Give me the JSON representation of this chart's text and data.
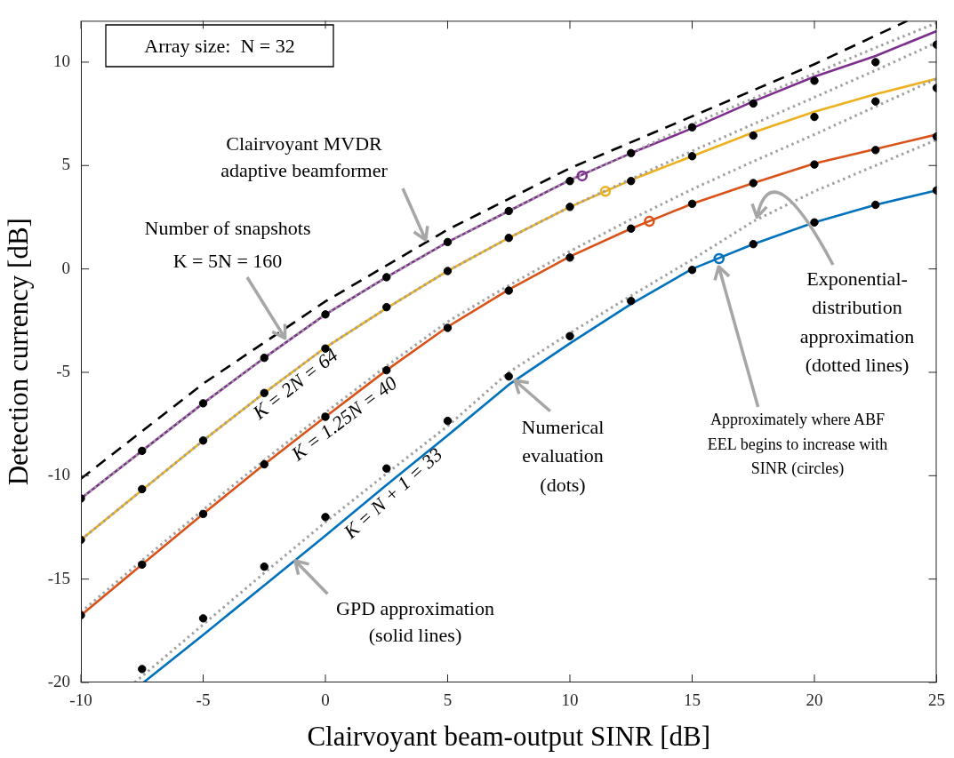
{
  "chart_data": {
    "type": "line",
    "xlabel": "Clairvoyant beam-output SINR [dB]",
    "ylabel": "Detection currency [dB]",
    "xlim": [
      -10,
      25
    ],
    "xticks": [
      -10,
      -5,
      0,
      5,
      10,
      15,
      20,
      25
    ],
    "ylim": [
      -20,
      12
    ],
    "yticks": [
      -20,
      -15,
      -10,
      -5,
      0,
      5,
      10
    ],
    "legend": false,
    "series": [
      {
        "color": "#000000",
        "line_style": "dashed",
        "marker": "none",
        "x": [
          -10,
          -5,
          0,
          5,
          10,
          15,
          20,
          23.8
        ],
        "values": [
          -10.15,
          -5.55,
          -1.57,
          1.9,
          4.87,
          7.38,
          9.9,
          12
        ]
      },
      {
        "color": "#7e2f8e",
        "line_style": "solid",
        "marker": "none",
        "x": [
          -10,
          -7.5,
          -5,
          -2.5,
          0,
          2.5,
          5,
          7.5,
          10,
          12.5,
          15,
          17.5,
          20,
          22.5,
          25
        ],
        "values": [
          -11.1,
          -8.8,
          -6.5,
          -4.3,
          -2.2,
          -0.4,
          1.3,
          2.8,
          4.3,
          5.6,
          6.8,
          8.1,
          9.3,
          10.3,
          11.5
        ]
      },
      {
        "color": "#edb120",
        "line_style": "solid",
        "marker": "none",
        "x": [
          -10,
          -7.5,
          -5,
          -2.5,
          0,
          2.5,
          5,
          7.5,
          10,
          12.5,
          15,
          17.5,
          20,
          22.5,
          25
        ],
        "values": [
          -13.1,
          -10.7,
          -8.3,
          -6.0,
          -3.8,
          -1.9,
          -0.1,
          1.5,
          3.0,
          4.3,
          5.45,
          6.6,
          7.6,
          8.45,
          9.2
        ]
      },
      {
        "color": "#d95319",
        "line_style": "solid",
        "marker": "none",
        "x": [
          -10,
          -7.5,
          -5,
          -2.5,
          0,
          2.5,
          5,
          7.5,
          10,
          12.5,
          15,
          17.5,
          20,
          22.5,
          25
        ],
        "values": [
          -16.75,
          -14.3,
          -11.85,
          -9.45,
          -7.15,
          -4.9,
          -2.8,
          -1.0,
          0.6,
          1.95,
          3.15,
          4.15,
          5.1,
          5.8,
          6.5
        ]
      },
      {
        "color": "#0072bd",
        "line_style": "solid",
        "marker": "none",
        "x": [
          -7.44,
          -5,
          -2.5,
          0,
          2.5,
          5,
          7.5,
          10,
          12.5,
          15,
          17.5,
          20,
          22.5,
          25
        ],
        "values": [
          -20,
          -17.7,
          -15.3,
          -12.9,
          -10.45,
          -8.05,
          -5.6,
          -3.6,
          -1.7,
          0.0,
          1.2,
          2.25,
          3.1,
          3.8
        ]
      },
      {
        "color": "#a0a0a0",
        "line_style": "dotted",
        "marker": "none",
        "x": [
          -10,
          -7.5,
          -5,
          -2.5,
          0,
          2.5,
          5,
          7.5,
          10,
          12.5,
          15,
          17.5,
          20,
          22.5,
          25
        ],
        "values": [
          -11.1,
          -8.8,
          -6.5,
          -4.3,
          -2.2,
          -0.4,
          1.3,
          2.8,
          4.3,
          5.6,
          7.0,
          8.25,
          9.45,
          10.7,
          11.9
        ]
      },
      {
        "color": "#a0a0a0",
        "line_style": "dotted",
        "marker": "none",
        "x": [
          -10,
          -7.5,
          -5,
          -2.5,
          0,
          2.5,
          5,
          7.5,
          10,
          12.5,
          15,
          17.5,
          20,
          22.5,
          25
        ],
        "values": [
          -13.1,
          -10.7,
          -8.3,
          -6.0,
          -3.8,
          -1.9,
          -0.1,
          1.5,
          3.0,
          4.35,
          5.7,
          7.0,
          8.3,
          9.6,
          10.95
        ]
      },
      {
        "color": "#a0a0a0",
        "line_style": "dotted",
        "marker": "none",
        "x": [
          -10,
          -7.5,
          -5,
          -2.5,
          0,
          2.5,
          5,
          7.5,
          10,
          12.5,
          15,
          17.5,
          20,
          22.5,
          25
        ],
        "values": [
          -16.6,
          -14.1,
          -11.65,
          -9.25,
          -6.95,
          -4.7,
          -2.55,
          -0.8,
          0.85,
          2.4,
          3.85,
          5.2,
          6.5,
          7.85,
          9.2
        ]
      },
      {
        "color": "#a0a0a0",
        "line_style": "dotted",
        "marker": "none",
        "x": [
          -7.8,
          -5,
          -2.5,
          0,
          2.5,
          5,
          7.5,
          10,
          12.5,
          15,
          17.5,
          20,
          22.5,
          25
        ],
        "values": [
          -20,
          -17.2,
          -14.7,
          -12.25,
          -9.9,
          -7.6,
          -5.0,
          -3.1,
          -1.3,
          0.45,
          2.3,
          3.75,
          5.0,
          6.25
        ]
      },
      {
        "type": "scatter",
        "color": "#000000",
        "marker": "circle",
        "x": [
          -10,
          -7.5,
          -5,
          -2.5,
          0,
          2.5,
          5,
          7.5,
          10,
          12.5,
          15,
          17.5,
          20,
          22.5,
          25
        ],
        "values": [
          -11.1,
          -8.8,
          -6.5,
          -4.3,
          -2.2,
          -0.4,
          1.3,
          2.8,
          4.25,
          5.6,
          6.85,
          8.0,
          9.1,
          10.0,
          10.85
        ]
      },
      {
        "type": "scatter",
        "color": "#000000",
        "marker": "circle",
        "x": [
          -10,
          -7.5,
          -5,
          -2.5,
          0,
          2.5,
          5,
          7.5,
          10,
          12.5,
          15,
          17.5,
          20,
          22.5,
          25
        ],
        "values": [
          -13.1,
          -10.65,
          -8.3,
          -6.0,
          -3.85,
          -1.85,
          -0.1,
          1.5,
          3.0,
          4.25,
          5.45,
          6.45,
          7.35,
          8.1,
          8.75
        ]
      },
      {
        "type": "scatter",
        "color": "#000000",
        "marker": "circle",
        "x": [
          -10,
          -7.5,
          -5,
          -2.5,
          0,
          2.5,
          5,
          7.5,
          10,
          12.5,
          15,
          17.5,
          20,
          22.5,
          25
        ],
        "values": [
          -16.75,
          -14.3,
          -11.85,
          -9.45,
          -7.15,
          -4.9,
          -2.85,
          -1.05,
          0.55,
          1.95,
          3.15,
          4.15,
          5.05,
          5.75,
          6.4
        ]
      },
      {
        "type": "scatter",
        "color": "#000000",
        "marker": "circle",
        "x": [
          -7.5,
          -5,
          -2.5,
          0,
          2.5,
          5,
          7.5,
          10,
          12.5,
          15,
          17.5,
          20,
          22.5,
          25
        ],
        "values": [
          -19.35,
          -16.9,
          -14.4,
          -12.0,
          -9.65,
          -7.35,
          -5.2,
          -3.25,
          -1.55,
          -0.05,
          1.2,
          2.25,
          3.1,
          3.8
        ]
      },
      {
        "type": "scatter",
        "marker": "circle",
        "colors": [
          "#7e2f8e",
          "#edb120",
          "#d95319",
          "#0072bd"
        ],
        "x": [
          10.5,
          11.45,
          13.25,
          16.1
        ],
        "values": [
          4.5,
          3.75,
          2.3,
          0.5
        ]
      }
    ],
    "annotations": [
      "Array size:  N = 32",
      {
        "text": "Clairvoyant MVDR\nadaptive beamformer",
        "x": 4.1,
        "y": 1.4
      },
      {
        "text": "Number of snapshots\nK = 5N = 160",
        "x": -1.65,
        "y": -3.35
      },
      "K = 2N = 64",
      "K = 1.25N = 40",
      "K = N + 1 = 33",
      {
        "text": "GPD approximation\n(solid lines)",
        "x": -1.25,
        "y": -14.1
      },
      {
        "text": "Numerical\nevaluation\n(dots)",
        "x": 7.75,
        "y": -5.4
      },
      {
        "text": "Approximately where ABF\nEEL begins to increase with\nSINR (circles)",
        "x": 16.1,
        "y": 0.5
      },
      {
        "text": "Exponential-\ndistribution\napproximation\n(dotted lines)",
        "x": 17.65,
        "y": 2.5
      }
    ]
  }
}
